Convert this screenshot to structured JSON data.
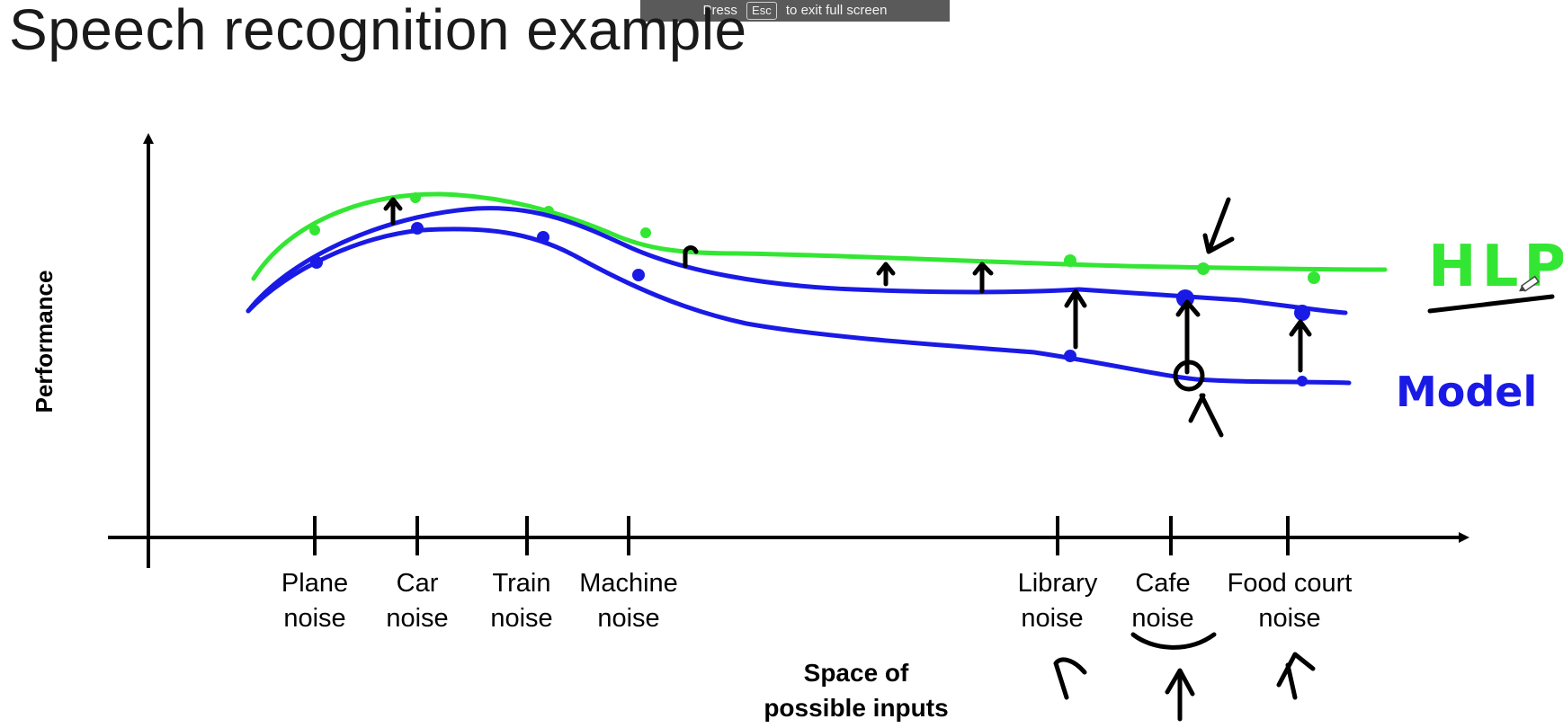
{
  "banner": {
    "prefix": "Press",
    "key": "Esc",
    "suffix": "to exit full screen"
  },
  "title": "Speech recognition example",
  "diagram": {
    "y_axis_label": "Performance",
    "x_axis_label_line1": "Space of",
    "x_axis_label_line2": "possible inputs",
    "categories": [
      {
        "line1": "Plane",
        "line2": "noise"
      },
      {
        "line1": "Car",
        "line2": "noise"
      },
      {
        "line1": "Train",
        "line2": "noise"
      },
      {
        "line1": "Machine",
        "line2": "noise"
      },
      {
        "line1": "Library",
        "line2": "noise"
      },
      {
        "line1": "Cafe",
        "line2": "noise"
      },
      {
        "line1": "Food court",
        "line2": "noise"
      }
    ],
    "hlp_label": "HLP",
    "model_label": "Model",
    "colors": {
      "hlp": "#33e633",
      "model": "#1a1ae6",
      "ink": "#000000"
    }
  }
}
